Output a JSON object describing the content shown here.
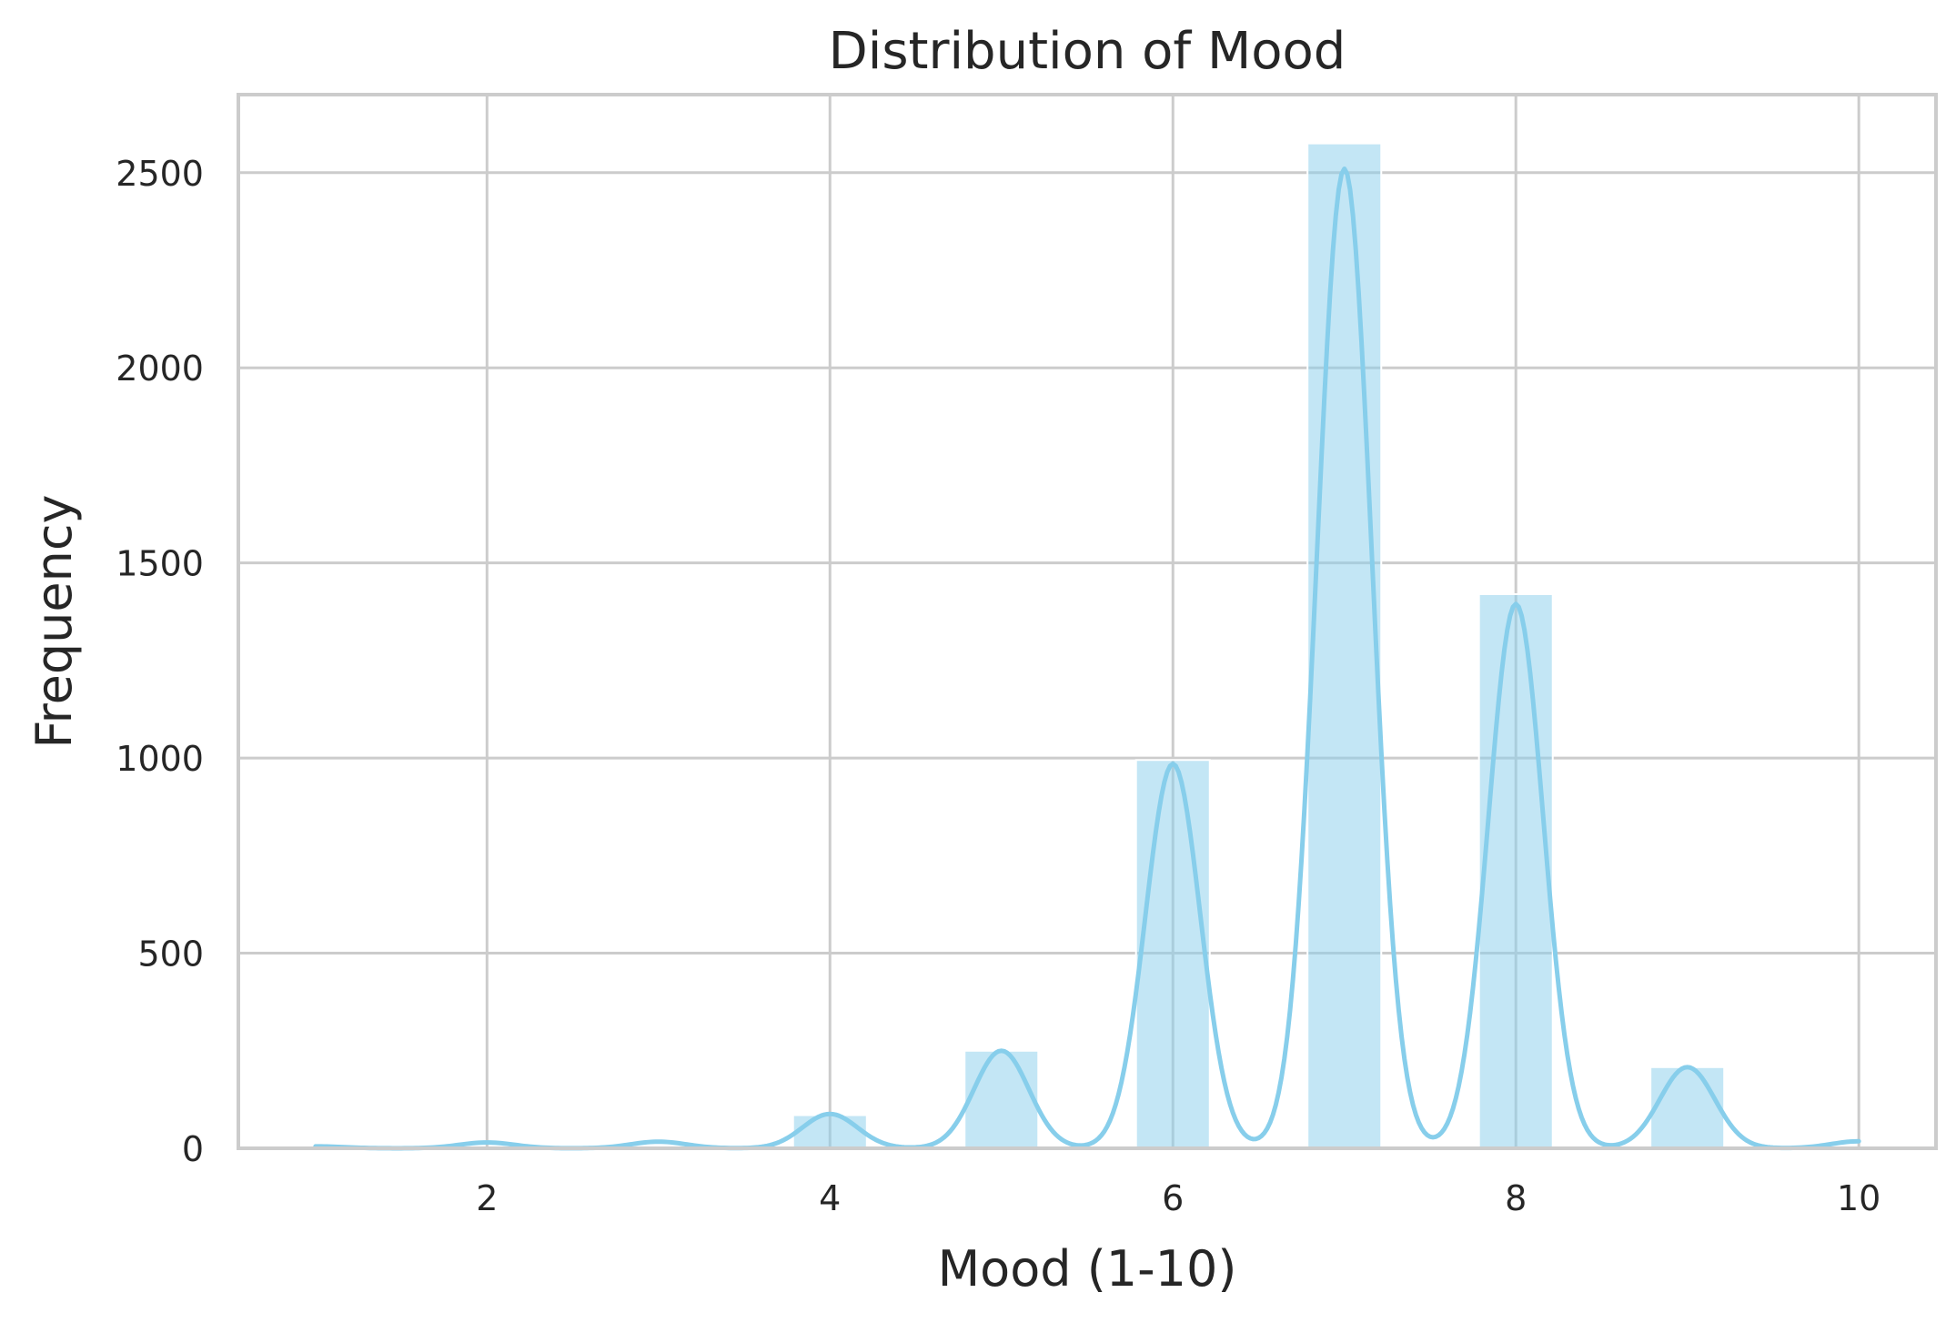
{
  "chart_data": {
    "type": "bar",
    "title": "Distribution of Mood",
    "xlabel": "Mood (1-10)",
    "ylabel": "Frequency",
    "xlim": [
      0.55,
      10.45
    ],
    "ylim": [
      0,
      2700
    ],
    "x_ticks": [
      2,
      4,
      6,
      8,
      10
    ],
    "y_ticks": [
      0,
      500,
      1000,
      1500,
      2000,
      2500
    ],
    "grid": true,
    "bars": [
      {
        "x": 1,
        "value": 0
      },
      {
        "x": 2,
        "value": 0
      },
      {
        "x": 3,
        "value": 0
      },
      {
        "x": 4,
        "value": 85
      },
      {
        "x": 5,
        "value": 250
      },
      {
        "x": 6,
        "value": 995
      },
      {
        "x": 7,
        "value": 2575
      },
      {
        "x": 8,
        "value": 1420
      },
      {
        "x": 9,
        "value": 208
      },
      {
        "x": 10,
        "value": 0
      }
    ],
    "bar_width": 0.43,
    "kde": {
      "peaks": [
        {
          "x": 1,
          "value": 5
        },
        {
          "x": 2,
          "value": 15
        },
        {
          "x": 3,
          "value": 17
        },
        {
          "x": 4,
          "value": 88
        },
        {
          "x": 5,
          "value": 250
        },
        {
          "x": 6,
          "value": 985
        },
        {
          "x": 7,
          "value": 2510
        },
        {
          "x": 8,
          "value": 1395
        },
        {
          "x": 9,
          "value": 208
        },
        {
          "x": 10,
          "value": 18
        }
      ],
      "bandwidth": 0.16
    },
    "colors": {
      "bar": "#87ceeb",
      "line": "#87ceeb",
      "grid": "#cccccc",
      "spine": "#cccccc",
      "text": "#262626"
    }
  }
}
